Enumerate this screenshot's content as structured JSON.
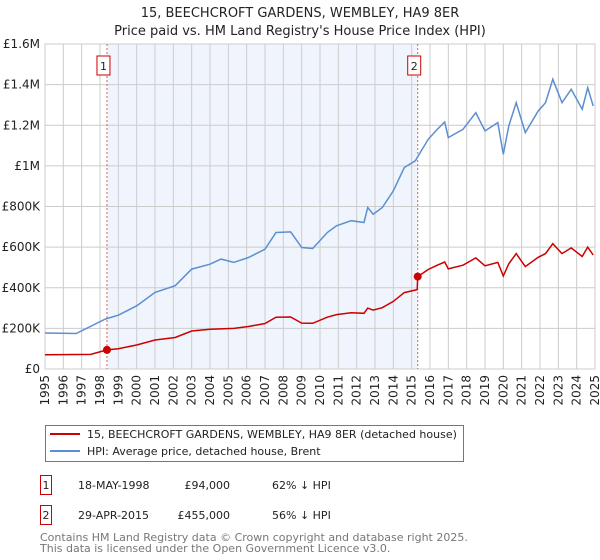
{
  "chart_data": {
    "type": "line",
    "title": "15, BEECHCROFT GARDENS, WEMBLEY, HA9 8ER",
    "subtitle": "Price paid vs. HM Land Registry's House Price Index (HPI)",
    "xlim": [
      1995,
      2025
    ],
    "ylim": [
      0,
      1600000
    ],
    "x_ticks": [
      "1995",
      "1996",
      "1997",
      "1998",
      "1999",
      "2000",
      "2001",
      "2002",
      "2003",
      "2004",
      "2005",
      "2006",
      "2007",
      "2008",
      "2009",
      "2010",
      "2011",
      "2012",
      "2013",
      "2014",
      "2015",
      "2016",
      "2017",
      "2018",
      "2019",
      "2020",
      "2021",
      "2022",
      "2023",
      "2024",
      "2025"
    ],
    "y_ticks": [
      {
        "value": 0,
        "label": "£0"
      },
      {
        "value": 200000,
        "label": "£200K"
      },
      {
        "value": 400000,
        "label": "£400K"
      },
      {
        "value": 600000,
        "label": "£600K"
      },
      {
        "value": 800000,
        "label": "£800K"
      },
      {
        "value": 1000000,
        "label": "£1M"
      },
      {
        "value": 1200000,
        "label": "£1.2M"
      },
      {
        "value": 1400000,
        "label": "£1.4M"
      },
      {
        "value": 1600000,
        "label": "£1.6M"
      }
    ],
    "grid": true,
    "shaded_range": [
      1998.38,
      2015.33
    ],
    "series": [
      {
        "name": "15, BEECHCROFT GARDENS, WEMBLEY, HA9 8ER (detached house)",
        "color": "#cc0000",
        "x": [
          1995,
          1997.5,
          1998.38,
          1999,
          2000,
          2001,
          2002.1,
          2003,
          2004,
          2005.3,
          2006.1,
          2007,
          2007.6,
          2008.4,
          2009,
          2009.6,
          2010.4,
          2010.9,
          2011.7,
          2012.4,
          2012.6,
          2012.9,
          2013.4,
          2014.0,
          2014.6,
          2015.3,
          2015.33,
          2015.9,
          2016.4,
          2016.8,
          2017.0,
          2017.8,
          2018.5,
          2019.0,
          2019.7,
          2020.0,
          2020.3,
          2020.7,
          2021.2,
          2021.9,
          2022.3,
          2022.7,
          2023.2,
          2023.7,
          2024.3,
          2024.6,
          2024.9
        ],
        "y": [
          70000,
          72000,
          94000,
          100000,
          118000,
          143000,
          155000,
          187000,
          196000,
          200000,
          209000,
          224000,
          255000,
          256000,
          226000,
          225000,
          255000,
          268000,
          277000,
          274000,
          300000,
          290000,
          302000,
          333000,
          376000,
          391000,
          455000,
          490000,
          511000,
          527000,
          493000,
          511000,
          547000,
          508000,
          525000,
          458000,
          518000,
          568000,
          504000,
          550000,
          568000,
          617000,
          568000,
          596000,
          554000,
          600000,
          561000
        ]
      },
      {
        "name": "HPI: Average price, detached house, Brent",
        "color": "#5b8fd0",
        "x": [
          1995,
          1996.7,
          1998.3,
          1999.0,
          2000.0,
          2001.0,
          2002.1,
          2003.0,
          2004.0,
          2004.6,
          2005.3,
          2006.1,
          2007.0,
          2007.6,
          2008.4,
          2009.0,
          2009.6,
          2010.4,
          2010.9,
          2011.7,
          2012.4,
          2012.6,
          2012.9,
          2013.4,
          2014.0,
          2014.6,
          2015.2,
          2015.9,
          2016.4,
          2016.8,
          2017.0,
          2017.8,
          2018.5,
          2019.0,
          2019.7,
          2020.0,
          2020.3,
          2020.7,
          2021.2,
          2021.9,
          2022.3,
          2022.7,
          2023.2,
          2023.7,
          2024.3,
          2024.6,
          2024.9
        ],
        "y": [
          177000,
          175000,
          246000,
          265000,
          311000,
          377000,
          410000,
          492000,
          516000,
          541000,
          525000,
          549000,
          590000,
          672000,
          675000,
          598000,
          593000,
          672000,
          705000,
          730000,
          721000,
          795000,
          762000,
          795000,
          877000,
          992000,
          1025000,
          1131000,
          1180000,
          1216000,
          1139000,
          1180000,
          1262000,
          1172000,
          1213000,
          1057000,
          1197000,
          1311000,
          1164000,
          1270000,
          1311000,
          1426000,
          1311000,
          1377000,
          1279000,
          1385000,
          1295000
        ]
      }
    ],
    "annotations": [
      {
        "label": "1",
        "x": 1998.38,
        "y": 94000
      },
      {
        "label": "2",
        "x": 2015.33,
        "y": 455000
      }
    ]
  },
  "legend": {
    "property": "15, BEECHCROFT GARDENS, WEMBLEY, HA9 8ER (detached house)",
    "hpi": "HPI: Average price, detached house, Brent"
  },
  "transactions": [
    {
      "num": "1",
      "date": "18-MAY-1998",
      "price": "£94,000",
      "hpi": "62% ↓ HPI"
    },
    {
      "num": "2",
      "date": "29-APR-2015",
      "price": "£455,000",
      "hpi": "56% ↓ HPI"
    }
  ],
  "footer": {
    "line1": "Contains HM Land Registry data © Crown copyright and database right 2025.",
    "line2": "This data is licensed under the Open Government Licence v3.0."
  }
}
